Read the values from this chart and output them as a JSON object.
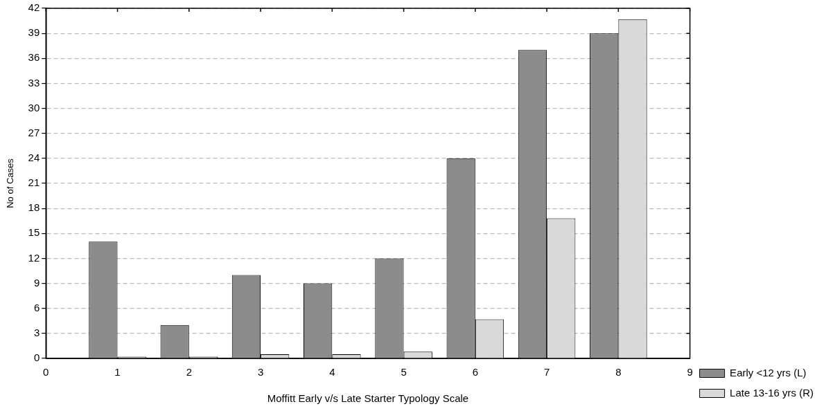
{
  "chart_data": {
    "type": "bar",
    "xlabel": "Moffitt Early v/s Late Starter Typology Scale",
    "ylabel": "No of Cases",
    "x": [
      1,
      2,
      3,
      4,
      5,
      6,
      7,
      8
    ],
    "series": [
      {
        "name": "Early <12 yrs (L)",
        "color": "#8c8c8c",
        "values": [
          14,
          4,
          10,
          9,
          12,
          24,
          37,
          39
        ]
      },
      {
        "name": "Late 13-16 yrs (R)",
        "color": "#d9d9d9",
        "values": [
          0.2,
          0.2,
          0.5,
          0.5,
          0.8,
          4.7,
          16.8,
          40.7
        ]
      }
    ],
    "xlim": [
      0,
      9
    ],
    "xticks": [
      0,
      1,
      2,
      3,
      4,
      5,
      6,
      7,
      8,
      9
    ],
    "ylim": [
      0,
      42
    ],
    "yticks": [
      0,
      3,
      6,
      9,
      12,
      15,
      18,
      21,
      24,
      27,
      30,
      33,
      36,
      39,
      42
    ],
    "grid": "y",
    "legend": "bottom right"
  }
}
